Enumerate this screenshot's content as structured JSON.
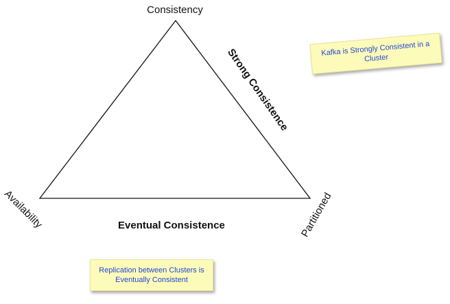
{
  "vertices": {
    "top": "Consistency",
    "left": "Availability",
    "right": "Partitioned"
  },
  "edges": {
    "right": "Strong Consistence",
    "bottom": "Eventual Consistence"
  },
  "notes": {
    "kafka": "Kafka is Strongly Consistent in a Cluster",
    "replication": "Replication between Clusters is Eventually Consistent"
  },
  "colors": {
    "note_background": "#fdfbb9",
    "note_text": "#2046d8",
    "line": "#111111"
  }
}
